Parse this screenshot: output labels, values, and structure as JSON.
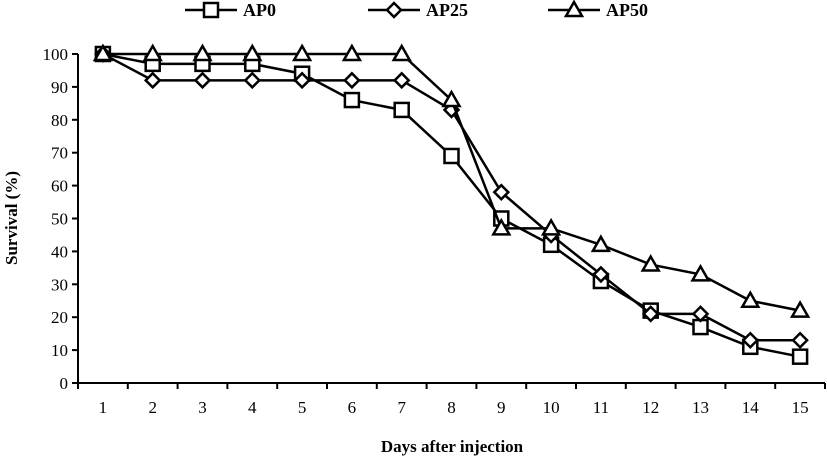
{
  "chart_data": {
    "type": "line",
    "title": "",
    "xlabel": "Days after injection",
    "ylabel": "Survival (%)",
    "x": [
      1,
      2,
      3,
      4,
      5,
      6,
      7,
      8,
      9,
      10,
      11,
      12,
      13,
      14,
      15
    ],
    "ylim": [
      0,
      100
    ],
    "yticks": [
      0,
      10,
      20,
      30,
      40,
      50,
      60,
      70,
      80,
      90,
      100
    ],
    "grid": false,
    "legend_position": "top",
    "series": [
      {
        "name": "AP0",
        "marker": "square",
        "values": [
          100,
          97,
          97,
          97,
          94,
          86,
          83,
          69,
          50,
          42,
          31,
          22,
          17,
          11,
          8
        ]
      },
      {
        "name": "AP25",
        "marker": "diamond",
        "values": [
          100,
          92,
          92,
          92,
          92,
          92,
          92,
          83,
          58,
          45,
          33,
          21,
          21,
          13,
          13
        ]
      },
      {
        "name": "AP50",
        "marker": "triangle",
        "values": [
          100,
          100,
          100,
          100,
          100,
          100,
          100,
          86,
          47,
          47,
          42,
          36,
          33,
          25,
          22
        ]
      }
    ]
  }
}
